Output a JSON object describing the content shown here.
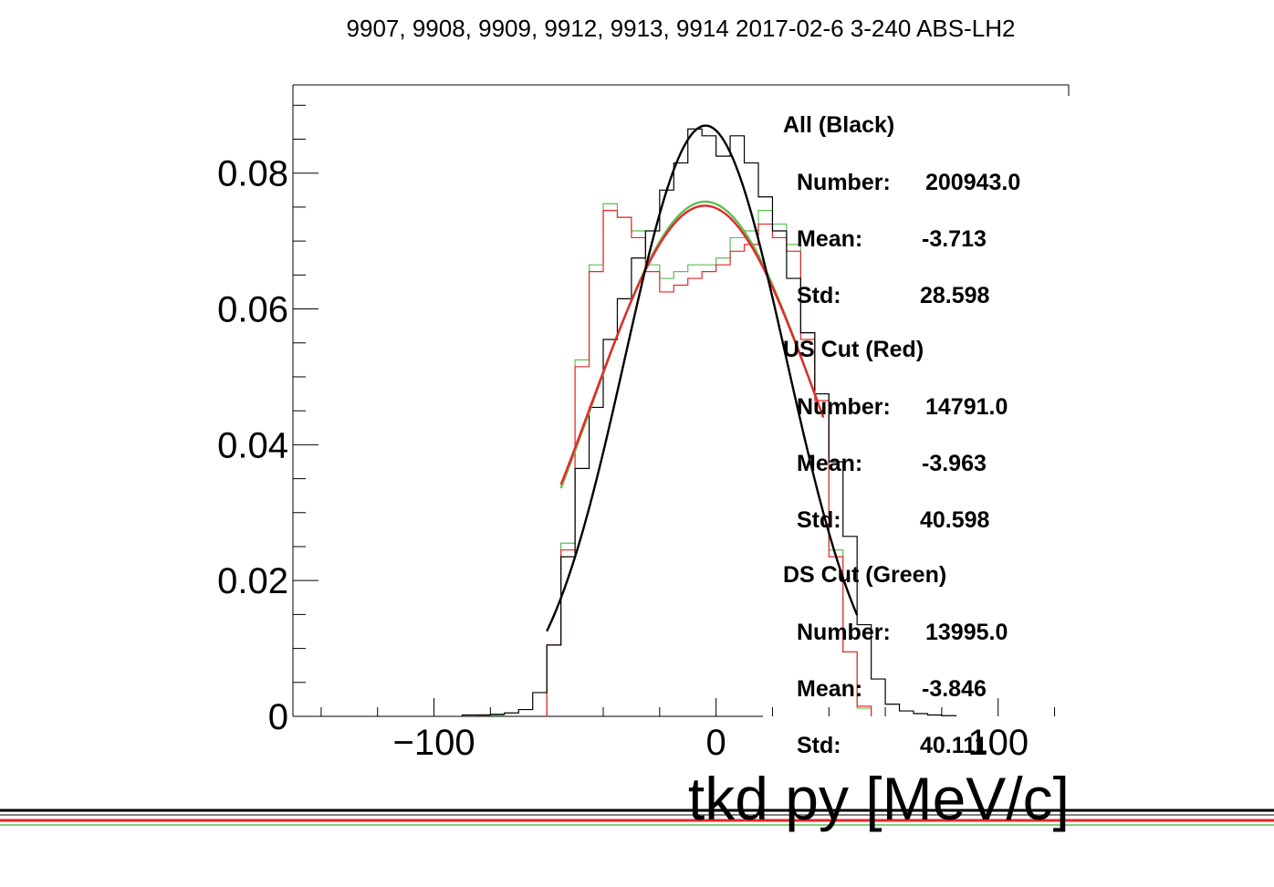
{
  "chart_data": {
    "type": "line",
    "title": "9907, 9908, 9909, 9912, 9913, 9914 2017-02-6 3-240 ABS-LH2",
    "xlabel": "tkd py [MeV/c]",
    "ylabel": "",
    "xlim": [
      -150,
      125
    ],
    "ylim": [
      0,
      0.093
    ],
    "xticks": [
      -100,
      0,
      100
    ],
    "xtick_labels": [
      "−100",
      "0",
      "100"
    ],
    "yticks": [
      0,
      0.02,
      0.04,
      0.06,
      0.08
    ],
    "ytick_labels": [
      "0",
      "0.02",
      "0.04",
      "0.06",
      "0.08"
    ],
    "bin_width": 5,
    "series": [
      {
        "color": "#000000",
        "kind": "histogram",
        "bins": [
          [
            -90,
            0.0002
          ],
          [
            -85,
            0.0002
          ],
          [
            -80,
            0.0003
          ],
          [
            -75,
            0.0005
          ],
          [
            -70,
            0.001
          ],
          [
            -65,
            0.0035
          ],
          [
            -60,
            0.0105
          ],
          [
            -55,
            0.0235
          ],
          [
            -50,
            0.0365
          ],
          [
            -45,
            0.0455
          ],
          [
            -40,
            0.0555
          ],
          [
            -35,
            0.0615
          ],
          [
            -30,
            0.0675
          ],
          [
            -25,
            0.0715
          ],
          [
            -20,
            0.0775
          ],
          [
            -15,
            0.0815
          ],
          [
            -10,
            0.0865
          ],
          [
            -5,
            0.0855
          ],
          [
            0,
            0.0825
          ],
          [
            5,
            0.0855
          ],
          [
            10,
            0.0815
          ],
          [
            15,
            0.0765
          ],
          [
            20,
            0.0715
          ],
          [
            25,
            0.0645
          ],
          [
            30,
            0.0565
          ],
          [
            35,
            0.0475
          ],
          [
            40,
            0.0375
          ],
          [
            45,
            0.0265
          ],
          [
            50,
            0.0135
          ],
          [
            55,
            0.0055
          ],
          [
            60,
            0.0018
          ],
          [
            65,
            0.0008
          ],
          [
            70,
            0.0004
          ],
          [
            75,
            0.0002
          ],
          [
            80,
            0.0001
          ]
        ]
      },
      {
        "color": "#e8262a",
        "kind": "histogram",
        "bins": [
          [
            -85,
            0.0002
          ],
          [
            -60,
            0.0105
          ],
          [
            -55,
            0.0245
          ],
          [
            -50,
            0.0515
          ],
          [
            -45,
            0.0655
          ],
          [
            -40,
            0.0745
          ],
          [
            -35,
            0.0735
          ],
          [
            -30,
            0.0705
          ],
          [
            -25,
            0.0655
          ],
          [
            -20,
            0.0625
          ],
          [
            -15,
            0.0635
          ],
          [
            -10,
            0.0645
          ],
          [
            -5,
            0.0655
          ],
          [
            0,
            0.0665
          ],
          [
            5,
            0.0685
          ],
          [
            10,
            0.0695
          ],
          [
            15,
            0.0725
          ],
          [
            20,
            0.0705
          ],
          [
            25,
            0.0685
          ],
          [
            30,
            0.0555
          ],
          [
            35,
            0.0465
          ],
          [
            40,
            0.0235
          ],
          [
            45,
            0.0095
          ],
          [
            50,
            0.0015
          ]
        ]
      },
      {
        "color": "#5cbf52",
        "kind": "histogram",
        "bins": [
          [
            -80,
            0.0002
          ],
          [
            -60,
            0.0105
          ],
          [
            -55,
            0.0255
          ],
          [
            -50,
            0.0525
          ],
          [
            -45,
            0.0665
          ],
          [
            -40,
            0.0755
          ],
          [
            -35,
            0.0735
          ],
          [
            -30,
            0.0715
          ],
          [
            -25,
            0.0665
          ],
          [
            -20,
            0.0645
          ],
          [
            -15,
            0.0655
          ],
          [
            -10,
            0.0665
          ],
          [
            -5,
            0.0665
          ],
          [
            0,
            0.0675
          ],
          [
            5,
            0.0705
          ],
          [
            10,
            0.0715
          ],
          [
            15,
            0.0745
          ],
          [
            20,
            0.0725
          ],
          [
            25,
            0.0695
          ],
          [
            30,
            0.0565
          ],
          [
            35,
            0.0475
          ],
          [
            40,
            0.0245
          ],
          [
            45,
            0.0095
          ],
          [
            50,
            0.0012
          ]
        ]
      },
      {
        "color": "#000000",
        "kind": "fit",
        "fit_range": [
          -60,
          50
        ],
        "amplitude": 0.087,
        "mean": -3.713,
        "sigma": 28.598
      },
      {
        "color": "#e8262a",
        "kind": "fit",
        "fit_range": [
          -55,
          38
        ],
        "amplitude": 0.0752,
        "mean": -3.963,
        "sigma": 40.598
      },
      {
        "color": "#5cbf52",
        "kind": "fit",
        "fit_range": [
          -55,
          38
        ],
        "amplitude": 0.0758,
        "mean": -3.846,
        "sigma": 40.111
      }
    ],
    "stats": [
      {
        "heading": "All (Black)",
        "number_label": "Number:",
        "number": "200943.0",
        "mean_label": "Mean:",
        "mean": "-3.713",
        "std_label": "Std:",
        "std": "28.598"
      },
      {
        "heading": "US Cut (Red)",
        "number_label": "Number:",
        "number": "14791.0",
        "mean_label": "Mean:",
        "mean": "-3.963",
        "std_label": "Std:",
        "std": "40.598"
      },
      {
        "heading": "DS Cut (Green)",
        "number_label": "Number:",
        "number": "13995.0",
        "mean_label": "Mean:",
        "mean": "-3.846",
        "std_label": "Std:",
        "std": "40.111"
      }
    ],
    "grid": false,
    "legend": "right"
  },
  "colors": {
    "all": "#000000",
    "us_cut": "#e8262a",
    "ds_cut": "#5cbf52"
  }
}
